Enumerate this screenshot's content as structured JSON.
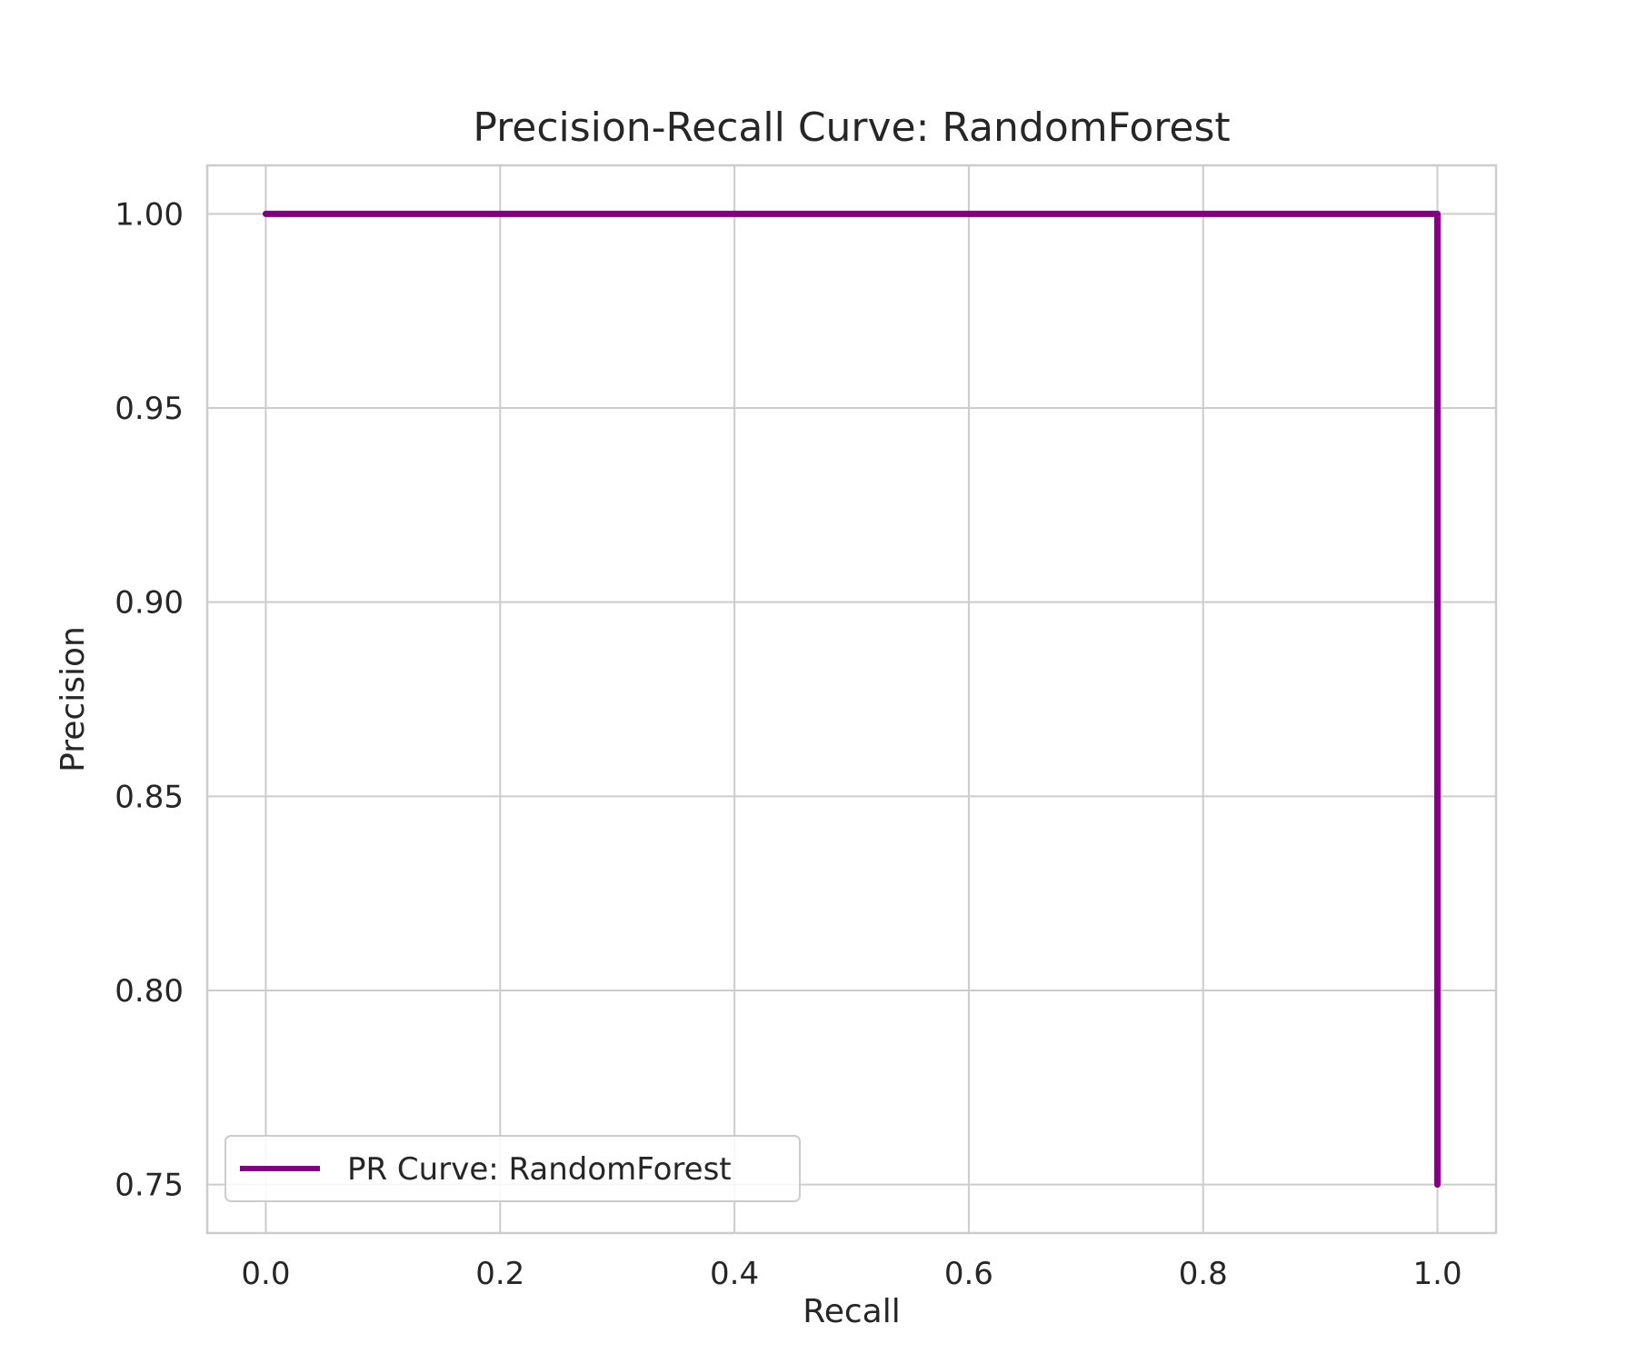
{
  "chart_data": {
    "type": "line",
    "title": "Precision-Recall Curve: RandomForest",
    "xlabel": "Recall",
    "ylabel": "Precision",
    "xlim": [
      -0.05,
      1.05
    ],
    "ylim": [
      0.7375,
      1.0125
    ],
    "xticks": [
      0.0,
      0.2,
      0.4,
      0.6,
      0.8,
      1.0
    ],
    "xtick_labels": [
      "0.0",
      "0.2",
      "0.4",
      "0.6",
      "0.8",
      "1.0"
    ],
    "yticks": [
      0.75,
      0.8,
      0.85,
      0.9,
      0.95,
      1.0
    ],
    "ytick_labels": [
      "0.75",
      "0.80",
      "0.85",
      "0.90",
      "0.95",
      "1.00"
    ],
    "grid": true,
    "legend_position": "lower-left",
    "series": [
      {
        "name": "PR Curve: RandomForest",
        "color": "#800080",
        "x": [
          0.0,
          1.0,
          1.0
        ],
        "y": [
          1.0,
          1.0,
          0.75
        ]
      }
    ]
  }
}
